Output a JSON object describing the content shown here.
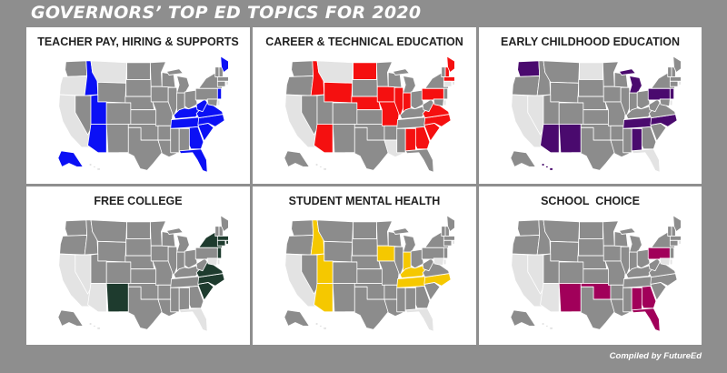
{
  "title": "GOVERNORS’ TOP ED TOPICS FOR 2020",
  "credit": "Compiled by FutureEd",
  "colors": {
    "background": "#8e8e8e",
    "state_default": "#e3e3e3",
    "state_neutral": "#8c8c8c",
    "teacher_pay": "#0b10f5",
    "career_technical": "#f51010",
    "early_childhood": "#4a0a6e",
    "free_college": "#1e3b2e",
    "mental_health": "#f5c800",
    "school_choice": "#a1005a"
  },
  "panels": [
    {
      "title": "TEACHER PAY, HIRING & SUPPORTS",
      "color_key": "teacher_pay",
      "highlighted": [
        "ID",
        "UT",
        "AZ",
        "TN",
        "GA",
        "FL",
        "SC",
        "NC",
        "VA",
        "WV",
        "KY",
        "NJ",
        "ME",
        "AK"
      ],
      "neutral": [
        "WA",
        "NV",
        "WY",
        "CO",
        "NM",
        "ND",
        "SD",
        "NE",
        "KS",
        "OK",
        "TX",
        "MN",
        "IA",
        "MO",
        "AR",
        "LA",
        "WI",
        "IL",
        "IN",
        "OH",
        "MI",
        "AL",
        "MS",
        "PA",
        "NY",
        "MD",
        "VT",
        "NH",
        "MA",
        "CT"
      ]
    },
    {
      "title": "CAREER & TECHNICAL EDUCATION",
      "color_key": "career_technical",
      "highlighted": [
        "ID",
        "WY",
        "AZ",
        "ND",
        "NE",
        "IA",
        "MO",
        "IL",
        "IN",
        "AL",
        "GA",
        "SC",
        "NC",
        "VA",
        "PA",
        "ME",
        "NH",
        "MA"
      ],
      "neutral": [
        "WA",
        "OR",
        "NV",
        "UT",
        "CO",
        "NM",
        "SD",
        "KS",
        "OK",
        "TX",
        "MN",
        "WI",
        "MI",
        "OH",
        "KY",
        "TN",
        "MS",
        "AR",
        "FL",
        "NY",
        "WV",
        "VT",
        "NJ",
        "MD",
        "AK"
      ]
    },
    {
      "title": "EARLY CHILDHOOD EDUCATION",
      "color_key": "early_childhood",
      "highlighted": [
        "WA",
        "NM",
        "AZ",
        "MI",
        "TN",
        "AL",
        "NC",
        "NJ",
        "PA",
        "HI"
      ],
      "neutral": [
        "OR",
        "ID",
        "MT",
        "WY",
        "UT",
        "CO",
        "SD",
        "NE",
        "KS",
        "OK",
        "TX",
        "MN",
        "IA",
        "MO",
        "AR",
        "LA",
        "WI",
        "IL",
        "IN",
        "OH",
        "KY",
        "MS",
        "GA",
        "SC",
        "VA",
        "WV",
        "NY",
        "VT",
        "NH",
        "ME",
        "MA",
        "CT",
        "MD",
        "AK"
      ]
    },
    {
      "title": "FREE COLLEGE",
      "color_key": "free_college",
      "highlighted": [
        "NM",
        "SC",
        "NC",
        "VA",
        "NY",
        "NJ",
        "CT",
        "RI",
        "MA"
      ],
      "neutral": [
        "WA",
        "OR",
        "ID",
        "MT",
        "WY",
        "UT",
        "CO",
        "ND",
        "SD",
        "NE",
        "KS",
        "OK",
        "TX",
        "MN",
        "IA",
        "MO",
        "AR",
        "LA",
        "WI",
        "IL",
        "IN",
        "MI",
        "OH",
        "KY",
        "TN",
        "AL",
        "MS",
        "GA",
        "WV",
        "PA",
        "VT",
        "NH",
        "ME",
        "AK"
      ]
    },
    {
      "title": "STUDENT MENTAL HEALTH",
      "color_key": "mental_health",
      "highlighted": [
        "ID",
        "UT",
        "AZ",
        "IA",
        "IN",
        "KY",
        "TN",
        "NC"
      ],
      "neutral": [
        "WA",
        "OR",
        "NV",
        "MT",
        "WY",
        "CO",
        "NM",
        "ND",
        "SD",
        "NE",
        "KS",
        "OK",
        "TX",
        "MN",
        "MO",
        "AR",
        "LA",
        "WI",
        "IL",
        "MI",
        "OH",
        "AL",
        "MS",
        "GA",
        "SC",
        "VA",
        "WV",
        "PA",
        "NY",
        "VT",
        "NH",
        "ME",
        "MA",
        "CT",
        "NJ",
        "AK"
      ]
    },
    {
      "title": "SCHOOL  CHOICE",
      "color_key": "school_choice",
      "highlighted": [
        "NM",
        "OK",
        "AL",
        "GA",
        "FL",
        "PA"
      ],
      "neutral": [
        "WA",
        "OR",
        "ID",
        "MT",
        "WY",
        "UT",
        "CO",
        "ND",
        "SD",
        "NE",
        "KS",
        "TX",
        "MN",
        "IA",
        "MO",
        "AR",
        "LA",
        "WI",
        "IL",
        "IN",
        "MI",
        "OH",
        "KY",
        "TN",
        "MS",
        "SC",
        "NC",
        "VA",
        "WV",
        "NY",
        "VT",
        "NH",
        "ME",
        "MA",
        "CT",
        "NJ",
        "AK"
      ]
    }
  ]
}
